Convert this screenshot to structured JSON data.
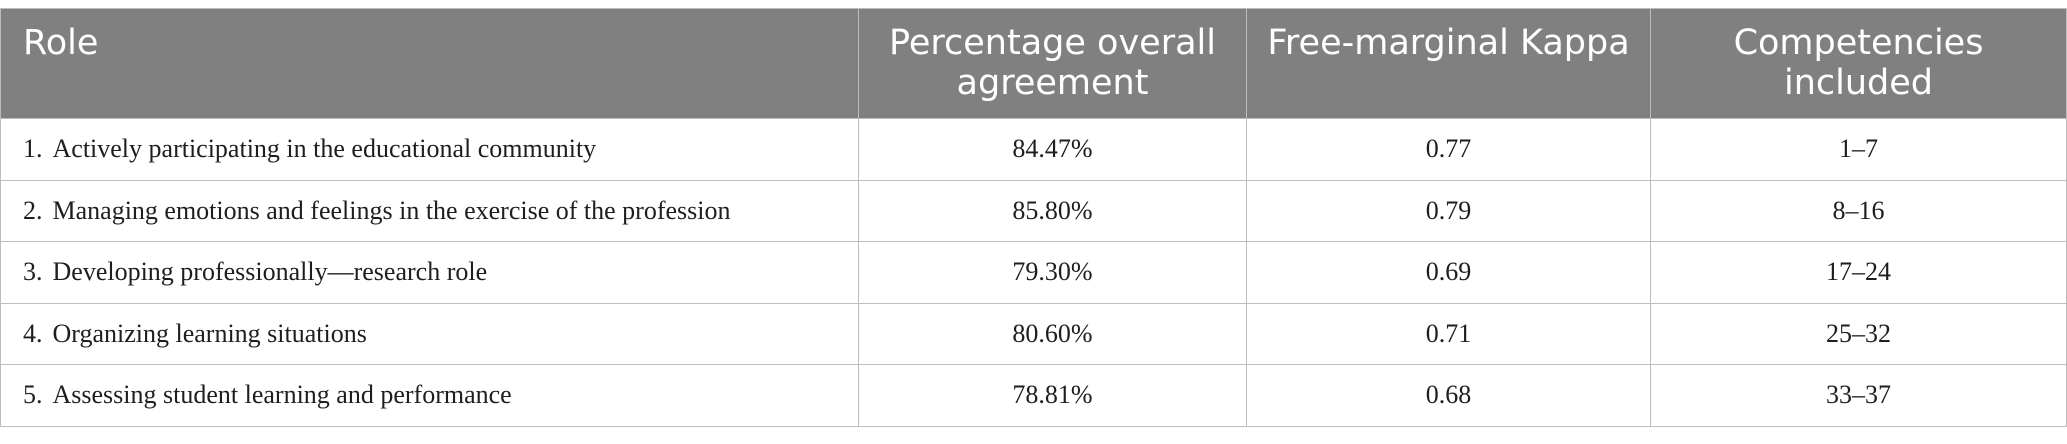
{
  "table": {
    "headers": {
      "role": "Role",
      "percentage": "Percentage overall agreement",
      "kappa": "Free-marginal Kappa",
      "competencies": "Competencies included"
    },
    "rows": [
      {
        "num": "1.",
        "role": "Actively participating in the educational community",
        "percentage": "84.47%",
        "kappa": "0.77",
        "competencies": "1–7"
      },
      {
        "num": "2.",
        "role": "Managing emotions and feelings in the exercise of the profession",
        "percentage": "85.80%",
        "kappa": "0.79",
        "competencies": "8–16"
      },
      {
        "num": "3.",
        "role": "Developing professionally—research role",
        "percentage": "79.30%",
        "kappa": "0.69",
        "competencies": "17–24"
      },
      {
        "num": "4.",
        "role": "Organizing learning situations",
        "percentage": "80.60%",
        "kappa": "0.71",
        "competencies": "25–32"
      },
      {
        "num": "5.",
        "role": "Assessing student learning and performance",
        "percentage": "78.81%",
        "kappa": "0.68",
        "competencies": "33–37"
      }
    ]
  },
  "colors": {
    "header_background": "#808080",
    "header_text": "#ffffff",
    "border": "#bdbdbd",
    "body_text": "#1e1e1e"
  }
}
